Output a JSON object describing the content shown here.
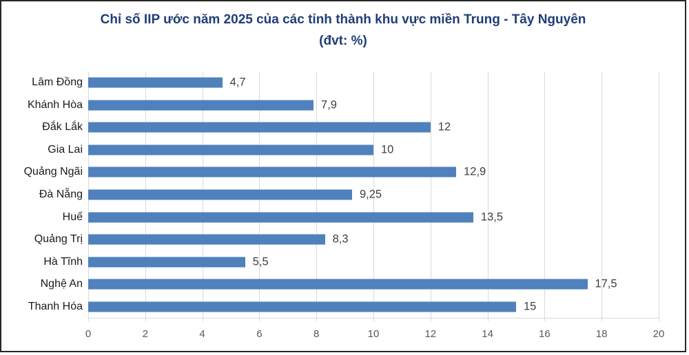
{
  "title": {
    "line1": "Chỉ số IIP ước năm 2025 của các tỉnh thành khu vực miền Trung - Tây Nguyên",
    "line2": "(đvt: %)"
  },
  "colors": {
    "title": "#1f3e75",
    "bar": "#4f81bd",
    "gridline": "#d9d9d9",
    "category_label": "#1a1a1a",
    "value_label": "#404040",
    "tick_label": "#595959",
    "frame_border": "#262626",
    "background": "#ffffff"
  },
  "chart_data": {
    "type": "bar",
    "orientation": "horizontal",
    "title": "Chỉ số IIP ước năm 2025 của các tỉnh thành khu vực miền Trung - Tây Nguyên",
    "subtitle": "(đvt: %)",
    "categories": [
      "Lâm Đồng",
      "Khánh Hòa",
      "Đắk Lắk",
      "Gia Lai",
      "Quảng Ngãi",
      "Đà Nẵng",
      "Huế",
      "Quảng Trị",
      "Hà Tĩnh",
      "Nghệ An",
      "Thanh Hóa"
    ],
    "values": [
      4.7,
      7.9,
      12,
      10,
      12.9,
      9.25,
      13.5,
      8.3,
      5.5,
      17.5,
      15
    ],
    "value_labels": [
      "4,7",
      "7,9",
      "12",
      "10",
      "12,9",
      "9,25",
      "13,5",
      "8,3",
      "5,5",
      "17,5",
      "15"
    ],
    "xlim": [
      0,
      20
    ],
    "x_ticks": [
      0,
      2,
      4,
      6,
      8,
      10,
      12,
      14,
      16,
      18,
      20
    ],
    "grid": true,
    "legend": false,
    "data_labels": true
  }
}
